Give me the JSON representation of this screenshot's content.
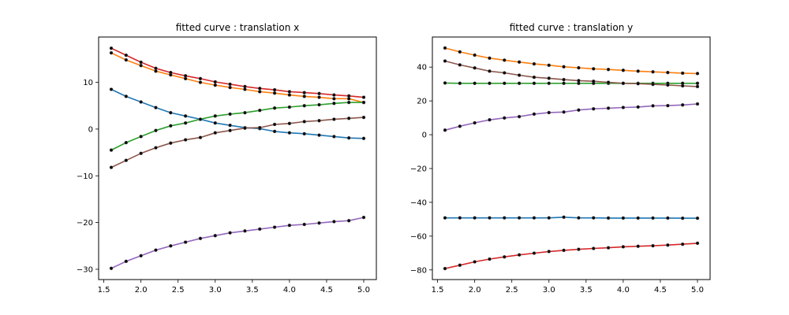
{
  "chart_data": [
    {
      "type": "line",
      "title": "fitted curve : translation x",
      "xlim": [
        1.43,
        5.17
      ],
      "ylim": [
        -32.2,
        19.7
      ],
      "xticks": [
        1.5,
        2.0,
        2.5,
        3.0,
        3.5,
        4.0,
        4.5,
        5.0
      ],
      "xtick_labels": [
        "1.5",
        "2.0",
        "2.5",
        "3.0",
        "3.5",
        "4.0",
        "4.5",
        "5.0"
      ],
      "yticks": [
        -30,
        -20,
        -10,
        0,
        10
      ],
      "ytick_labels": [
        "−30",
        "−20",
        "−10",
        "0",
        "10"
      ],
      "grid": false,
      "x": [
        1.6,
        1.8,
        2.0,
        2.2,
        2.4,
        2.6,
        2.8,
        3.0,
        3.2,
        3.4,
        3.6,
        3.8,
        4.0,
        4.2,
        4.4,
        4.6,
        4.8,
        5.0
      ],
      "series": [
        {
          "color": "#1f77b4",
          "values": [
            8.5,
            7.0,
            5.8,
            4.6,
            3.5,
            2.8,
            2.1,
            1.3,
            0.8,
            0.3,
            0.1,
            -0.5,
            -0.8,
            -1.0,
            -1.3,
            -1.6,
            -1.9,
            -2.0
          ]
        },
        {
          "color": "#ff7f0e",
          "values": [
            16.3,
            14.8,
            13.6,
            12.4,
            11.6,
            10.8,
            10.0,
            9.4,
            8.9,
            8.5,
            8.0,
            7.7,
            7.3,
            7.0,
            6.8,
            6.5,
            6.5,
            5.7
          ]
        },
        {
          "color": "#2ca02c",
          "values": [
            -4.5,
            -2.9,
            -1.6,
            -0.3,
            0.7,
            1.3,
            2.1,
            2.8,
            3.2,
            3.5,
            4.0,
            4.5,
            4.7,
            5.0,
            5.2,
            5.5,
            5.7,
            5.7
          ]
        },
        {
          "color": "#d62728",
          "values": [
            17.3,
            15.8,
            14.3,
            13.0,
            12.1,
            11.4,
            10.8,
            10.1,
            9.6,
            9.1,
            8.7,
            8.4,
            8.0,
            7.8,
            7.6,
            7.3,
            7.1,
            6.8
          ]
        },
        {
          "color": "#9467bd",
          "values": [
            -29.8,
            -28.3,
            -27.1,
            -25.9,
            -25.0,
            -24.2,
            -23.4,
            -22.8,
            -22.2,
            -21.8,
            -21.4,
            -21.0,
            -20.6,
            -20.4,
            -20.1,
            -19.8,
            -19.6,
            -18.9
          ]
        },
        {
          "color": "#8c564b",
          "values": [
            -8.2,
            -6.7,
            -5.2,
            -4.0,
            -3.0,
            -2.3,
            -1.8,
            -0.8,
            -0.3,
            0.2,
            0.3,
            1.0,
            1.2,
            1.6,
            1.8,
            2.1,
            2.3,
            2.5
          ]
        }
      ]
    },
    {
      "type": "line",
      "title": "fitted curve : translation y",
      "xlim": [
        1.43,
        5.17
      ],
      "ylim": [
        -85.7,
        57.8
      ],
      "xticks": [
        1.5,
        2.0,
        2.5,
        3.0,
        3.5,
        4.0,
        4.5,
        5.0
      ],
      "xtick_labels": [
        "1.5",
        "2.0",
        "2.5",
        "3.0",
        "3.5",
        "4.0",
        "4.5",
        "5.0"
      ],
      "yticks": [
        -80,
        -60,
        -40,
        -20,
        0,
        20,
        40
      ],
      "ytick_labels": [
        "−80",
        "−60",
        "−40",
        "−20",
        "0",
        "20",
        "40"
      ],
      "grid": false,
      "x": [
        1.6,
        1.8,
        2.0,
        2.2,
        2.4,
        2.6,
        2.8,
        3.0,
        3.2,
        3.4,
        3.6,
        3.8,
        4.0,
        4.2,
        4.4,
        4.6,
        4.8,
        5.0
      ],
      "series": [
        {
          "color": "#1f77b4",
          "values": [
            -49.2,
            -49.2,
            -49.2,
            -49.2,
            -49.2,
            -49.2,
            -49.2,
            -49.2,
            -48.8,
            -49.2,
            -49.2,
            -49.3,
            -49.3,
            -49.3,
            -49.3,
            -49.3,
            -49.4,
            -49.4
          ]
        },
        {
          "color": "#ff7f0e",
          "values": [
            51.3,
            49.0,
            47.1,
            45.3,
            44.1,
            43.0,
            41.9,
            41.1,
            40.2,
            39.6,
            39.0,
            38.6,
            38.1,
            37.6,
            37.2,
            36.8,
            36.4,
            36.2
          ]
        },
        {
          "color": "#2ca02c",
          "values": [
            30.6,
            30.4,
            30.4,
            30.4,
            30.4,
            30.4,
            30.4,
            30.4,
            30.4,
            30.4,
            30.4,
            30.4,
            30.4,
            30.4,
            30.4,
            30.4,
            30.4,
            30.4
          ]
        },
        {
          "color": "#d62728",
          "values": [
            -79.2,
            -77.2,
            -75.2,
            -73.6,
            -72.3,
            -71.1,
            -70.1,
            -69.1,
            -68.4,
            -67.8,
            -67.3,
            -66.9,
            -66.3,
            -66.0,
            -65.7,
            -65.3,
            -64.8,
            -64.2
          ]
        },
        {
          "color": "#9467bd",
          "values": [
            2.7,
            5.0,
            7.0,
            8.8,
            9.9,
            10.7,
            12.2,
            13.1,
            13.4,
            14.6,
            15.3,
            15.7,
            16.1,
            16.4,
            17.1,
            17.2,
            17.6,
            18.2
          ]
        },
        {
          "color": "#8c564b",
          "values": [
            43.6,
            41.3,
            39.5,
            37.6,
            36.6,
            35.2,
            34.0,
            33.4,
            32.6,
            32.0,
            31.6,
            31.0,
            30.4,
            30.2,
            29.8,
            29.4,
            28.9,
            28.5
          ]
        }
      ]
    }
  ]
}
